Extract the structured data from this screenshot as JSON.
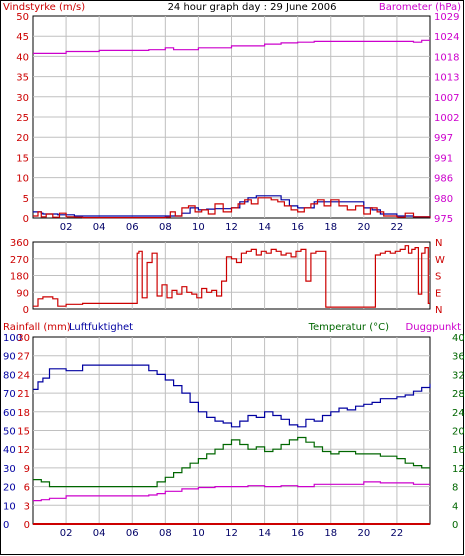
{
  "title": "24 hour graph day : 29 June 2006",
  "colors": {
    "wind": "#0000a0",
    "gust": "#cc0000",
    "barometer": "#cc00cc",
    "direction": "#cc0000",
    "rainfall": "#cc0000",
    "humidity": "#0000a0",
    "temperature": "#006600",
    "dewpoint": "#cc00cc",
    "grid": "#c0c0c0",
    "frame": "#000000"
  },
  "chart_data": [
    {
      "type": "line",
      "title": "24 hour graph day : 29 June 2006",
      "ylabel_left": "Vindstyrke (m/s)",
      "ylabel_right": "Barometer (hPa)",
      "x_ticks": [
        "02",
        "04",
        "06",
        "08",
        "10",
        "12",
        "14",
        "16",
        "18",
        "20",
        "22"
      ],
      "x_range": [
        0,
        24
      ],
      "yleft_ticks": [
        "0",
        "5",
        "10",
        "15",
        "20",
        "25",
        "30",
        "35",
        "40",
        "45",
        "50"
      ],
      "yleft_range": [
        0,
        50
      ],
      "yright_ticks": [
        "975",
        "980",
        "986",
        "991",
        "997",
        "1002",
        "1007",
        "1013",
        "1018",
        "1024",
        "1029"
      ],
      "yright_range": [
        975,
        1029
      ],
      "grid": true,
      "series": [
        {
          "key": "wind",
          "axis": "left",
          "x": [
            0,
            0.5,
            0.6,
            1.5,
            2.5,
            6,
            7.5,
            8.5,
            9,
            9.5,
            10,
            10.5,
            11,
            12,
            12.5,
            13,
            13.5,
            14,
            15,
            15.5,
            16,
            16.5,
            17,
            17.5,
            18.5,
            19.5,
            20,
            20.5,
            21,
            22,
            23,
            24
          ],
          "y": [
            1.5,
            1.2,
            1.0,
            0.8,
            0.5,
            0.5,
            0.5,
            0.5,
            1.2,
            2.5,
            2.0,
            2.2,
            2.3,
            2.5,
            4.0,
            5.0,
            5.5,
            5.5,
            4.5,
            3.0,
            2.5,
            2.5,
            4.0,
            4.0,
            4.0,
            4.0,
            2.5,
            2.0,
            1.0,
            0.5,
            0.3,
            0.5
          ]
        },
        {
          "key": "gust",
          "axis": "left",
          "x": [
            0,
            0.3,
            0.5,
            0.8,
            1.2,
            1.6,
            2.0,
            2.5,
            3,
            6,
            7,
            8,
            8.3,
            8.6,
            9,
            9.4,
            9.8,
            10.2,
            10.6,
            11,
            11.5,
            12,
            12.4,
            12.8,
            13.2,
            13.6,
            14,
            14.4,
            14.8,
            15.2,
            15.6,
            16,
            16.4,
            16.8,
            17.2,
            17.6,
            18,
            18.5,
            19,
            19.5,
            20,
            20.4,
            20.8,
            21.2,
            22,
            22.5,
            23,
            24
          ],
          "y": [
            0.5,
            1.5,
            0.3,
            1.0,
            0.2,
            1.2,
            0.3,
            0.2,
            0.1,
            0.1,
            0.1,
            0.2,
            1.5,
            0.5,
            2.5,
            3.0,
            1.5,
            2.0,
            1.0,
            3.5,
            1.5,
            2.5,
            3.5,
            4.5,
            3.5,
            5.0,
            5.0,
            4.5,
            4.0,
            3.0,
            2.0,
            1.5,
            2.5,
            3.5,
            4.5,
            3.0,
            4.5,
            3.0,
            2.0,
            3.0,
            1.0,
            2.5,
            1.5,
            0.5,
            0.2,
            1.2,
            0.3,
            0.1
          ]
        },
        {
          "key": "barometer",
          "axis": "right",
          "x": [
            0,
            2,
            4,
            7,
            8,
            8.5,
            10,
            12,
            14,
            15,
            16,
            17,
            18,
            20,
            22,
            23,
            23.5,
            24
          ],
          "y": [
            1019.0,
            1019.5,
            1019.8,
            1020.0,
            1020.5,
            1020.0,
            1020.5,
            1021.0,
            1021.5,
            1021.8,
            1022.0,
            1022.2,
            1022.2,
            1022.2,
            1022.2,
            1022.0,
            1022.5,
            1022.5
          ]
        }
      ]
    },
    {
      "type": "line",
      "x_range": [
        0,
        24
      ],
      "y_ticks_left": [
        "0",
        "90",
        "180",
        "270",
        "360"
      ],
      "y_ticks_right": [
        "N",
        "E",
        "S",
        "W",
        "N"
      ],
      "y_range": [
        0,
        360
      ],
      "series": [
        {
          "key": "direction",
          "x": [
            0,
            0.3,
            0.6,
            1.2,
            1.5,
            2,
            3,
            4,
            6,
            6.3,
            6.4,
            6.6,
            6.9,
            7.2,
            7.5,
            7.8,
            8.1,
            8.4,
            8.7,
            9,
            9.3,
            9.6,
            9.9,
            10.2,
            10.5,
            10.8,
            11.1,
            11.4,
            11.7,
            12.0,
            12.3,
            12.6,
            12.9,
            13.2,
            13.5,
            13.8,
            14.1,
            14.4,
            14.7,
            15.0,
            15.3,
            15.6,
            15.9,
            16.2,
            16.5,
            16.8,
            17.1,
            17.4,
            17.7,
            18.0,
            18.3,
            18.6,
            18.9,
            19.2,
            19.5,
            19.8,
            20.1,
            20.4,
            20.7,
            21.0,
            21.3,
            21.6,
            21.9,
            22.2,
            22.5,
            22.7,
            22.9,
            23.1,
            23.3,
            23.5,
            23.7,
            23.9,
            24
          ],
          "y": [
            15,
            55,
            65,
            55,
            15,
            25,
            30,
            30,
            30,
            300,
            310,
            60,
            250,
            300,
            70,
            130,
            60,
            100,
            80,
            120,
            90,
            80,
            60,
            110,
            90,
            100,
            70,
            150,
            280,
            270,
            250,
            300,
            310,
            320,
            290,
            310,
            300,
            320,
            310,
            290,
            300,
            280,
            310,
            320,
            150,
            300,
            310,
            310,
            10,
            10,
            10,
            10,
            10,
            10,
            10,
            10,
            10,
            10,
            290,
            300,
            310,
            300,
            310,
            320,
            340,
            300,
            320,
            330,
            80,
            300,
            330,
            30,
            30
          ]
        }
      ]
    },
    {
      "type": "line",
      "ylabel_left_1": "Rainfall (mm)",
      "ylabel_left_2": "Luftfuktighet",
      "ylabel_right_1": "Temperatur (°C)",
      "ylabel_right_2": "Duggpunkt",
      "x_ticks": [
        "02",
        "04",
        "06",
        "08",
        "10",
        "12",
        "14",
        "16",
        "18",
        "20",
        "22"
      ],
      "x_range": [
        0,
        24
      ],
      "y_ticks_humidity": [
        "0",
        "10",
        "20",
        "30",
        "40",
        "50",
        "60",
        "70",
        "80",
        "90",
        "100"
      ],
      "humidity_range": [
        0,
        100
      ],
      "y_ticks_rain": [
        "0",
        "3",
        "6",
        "9",
        "12",
        "15",
        "18",
        "21",
        "24",
        "27",
        "30"
      ],
      "rain_range": [
        0,
        30
      ],
      "y_ticks_temp": [
        "0",
        "4",
        "8",
        "12",
        "16",
        "20",
        "24",
        "28",
        "32",
        "36",
        "40"
      ],
      "temp_range": [
        0,
        40
      ],
      "grid": true,
      "series": [
        {
          "key": "humidity",
          "axis": "humidity",
          "x": [
            0,
            0.3,
            0.6,
            1,
            2,
            3,
            4,
            5,
            6,
            7,
            7.5,
            8,
            8.5,
            9,
            9.5,
            10,
            10.5,
            11,
            11.5,
            12,
            12.5,
            13,
            13.5,
            14,
            14.5,
            15,
            15.5,
            16,
            16.5,
            17,
            17.5,
            18,
            18.5,
            19,
            19.5,
            20,
            20.5,
            21,
            21.5,
            22,
            22.5,
            23,
            23.5,
            24
          ],
          "y": [
            72,
            76,
            78,
            83,
            82,
            85,
            85,
            85,
            85,
            82,
            80,
            77,
            74,
            70,
            65,
            60,
            57,
            55,
            54,
            52,
            55,
            58,
            57,
            60,
            58,
            56,
            53,
            52,
            56,
            55,
            58,
            60,
            62,
            61,
            63,
            64,
            65,
            67,
            67,
            68,
            69,
            71,
            73,
            75
          ]
        },
        {
          "key": "rainfall",
          "axis": "rain",
          "x": [
            0,
            24
          ],
          "y": [
            0,
            0
          ]
        },
        {
          "key": "temperature",
          "axis": "temp",
          "x": [
            0,
            0.5,
            1,
            2,
            3,
            4,
            5,
            6,
            7,
            7.5,
            8,
            8.5,
            9,
            9.5,
            10,
            10.5,
            11,
            11.5,
            12,
            12.5,
            13,
            13.5,
            14,
            14.5,
            15,
            15.5,
            16,
            16.5,
            17,
            17.5,
            18,
            18.5,
            19,
            19.5,
            20,
            20.5,
            21,
            21.5,
            22,
            22.5,
            23,
            23.5,
            24
          ],
          "y": [
            9.5,
            9.0,
            8.0,
            8.0,
            8.0,
            8.0,
            8.0,
            8.0,
            8.0,
            9.0,
            10.0,
            11.0,
            12.0,
            13.0,
            14.0,
            15.0,
            16.0,
            17.0,
            18.0,
            17.0,
            16.0,
            16.5,
            15.5,
            16.0,
            17.0,
            18.0,
            18.5,
            17.5,
            16.5,
            15.5,
            15.0,
            15.5,
            15.5,
            15.0,
            15.0,
            15.0,
            14.5,
            14.5,
            14.0,
            13.0,
            12.5,
            12.0,
            12.0
          ]
        },
        {
          "key": "dewpoint",
          "axis": "temp",
          "x": [
            0,
            0.5,
            1,
            2,
            3,
            4,
            5,
            6,
            7,
            7.5,
            8,
            8.5,
            9,
            10,
            11,
            12,
            13,
            14,
            15,
            16,
            17,
            18,
            19,
            20,
            21,
            22,
            23,
            24
          ],
          "y": [
            5.0,
            5.2,
            5.5,
            6.0,
            6.0,
            6.0,
            6.0,
            6.0,
            6.2,
            6.5,
            7.0,
            7.0,
            7.5,
            7.8,
            8.0,
            8.0,
            8.2,
            8.0,
            8.2,
            8.0,
            8.5,
            8.5,
            8.5,
            9.0,
            8.8,
            8.8,
            8.5,
            8.5
          ]
        }
      ]
    }
  ]
}
